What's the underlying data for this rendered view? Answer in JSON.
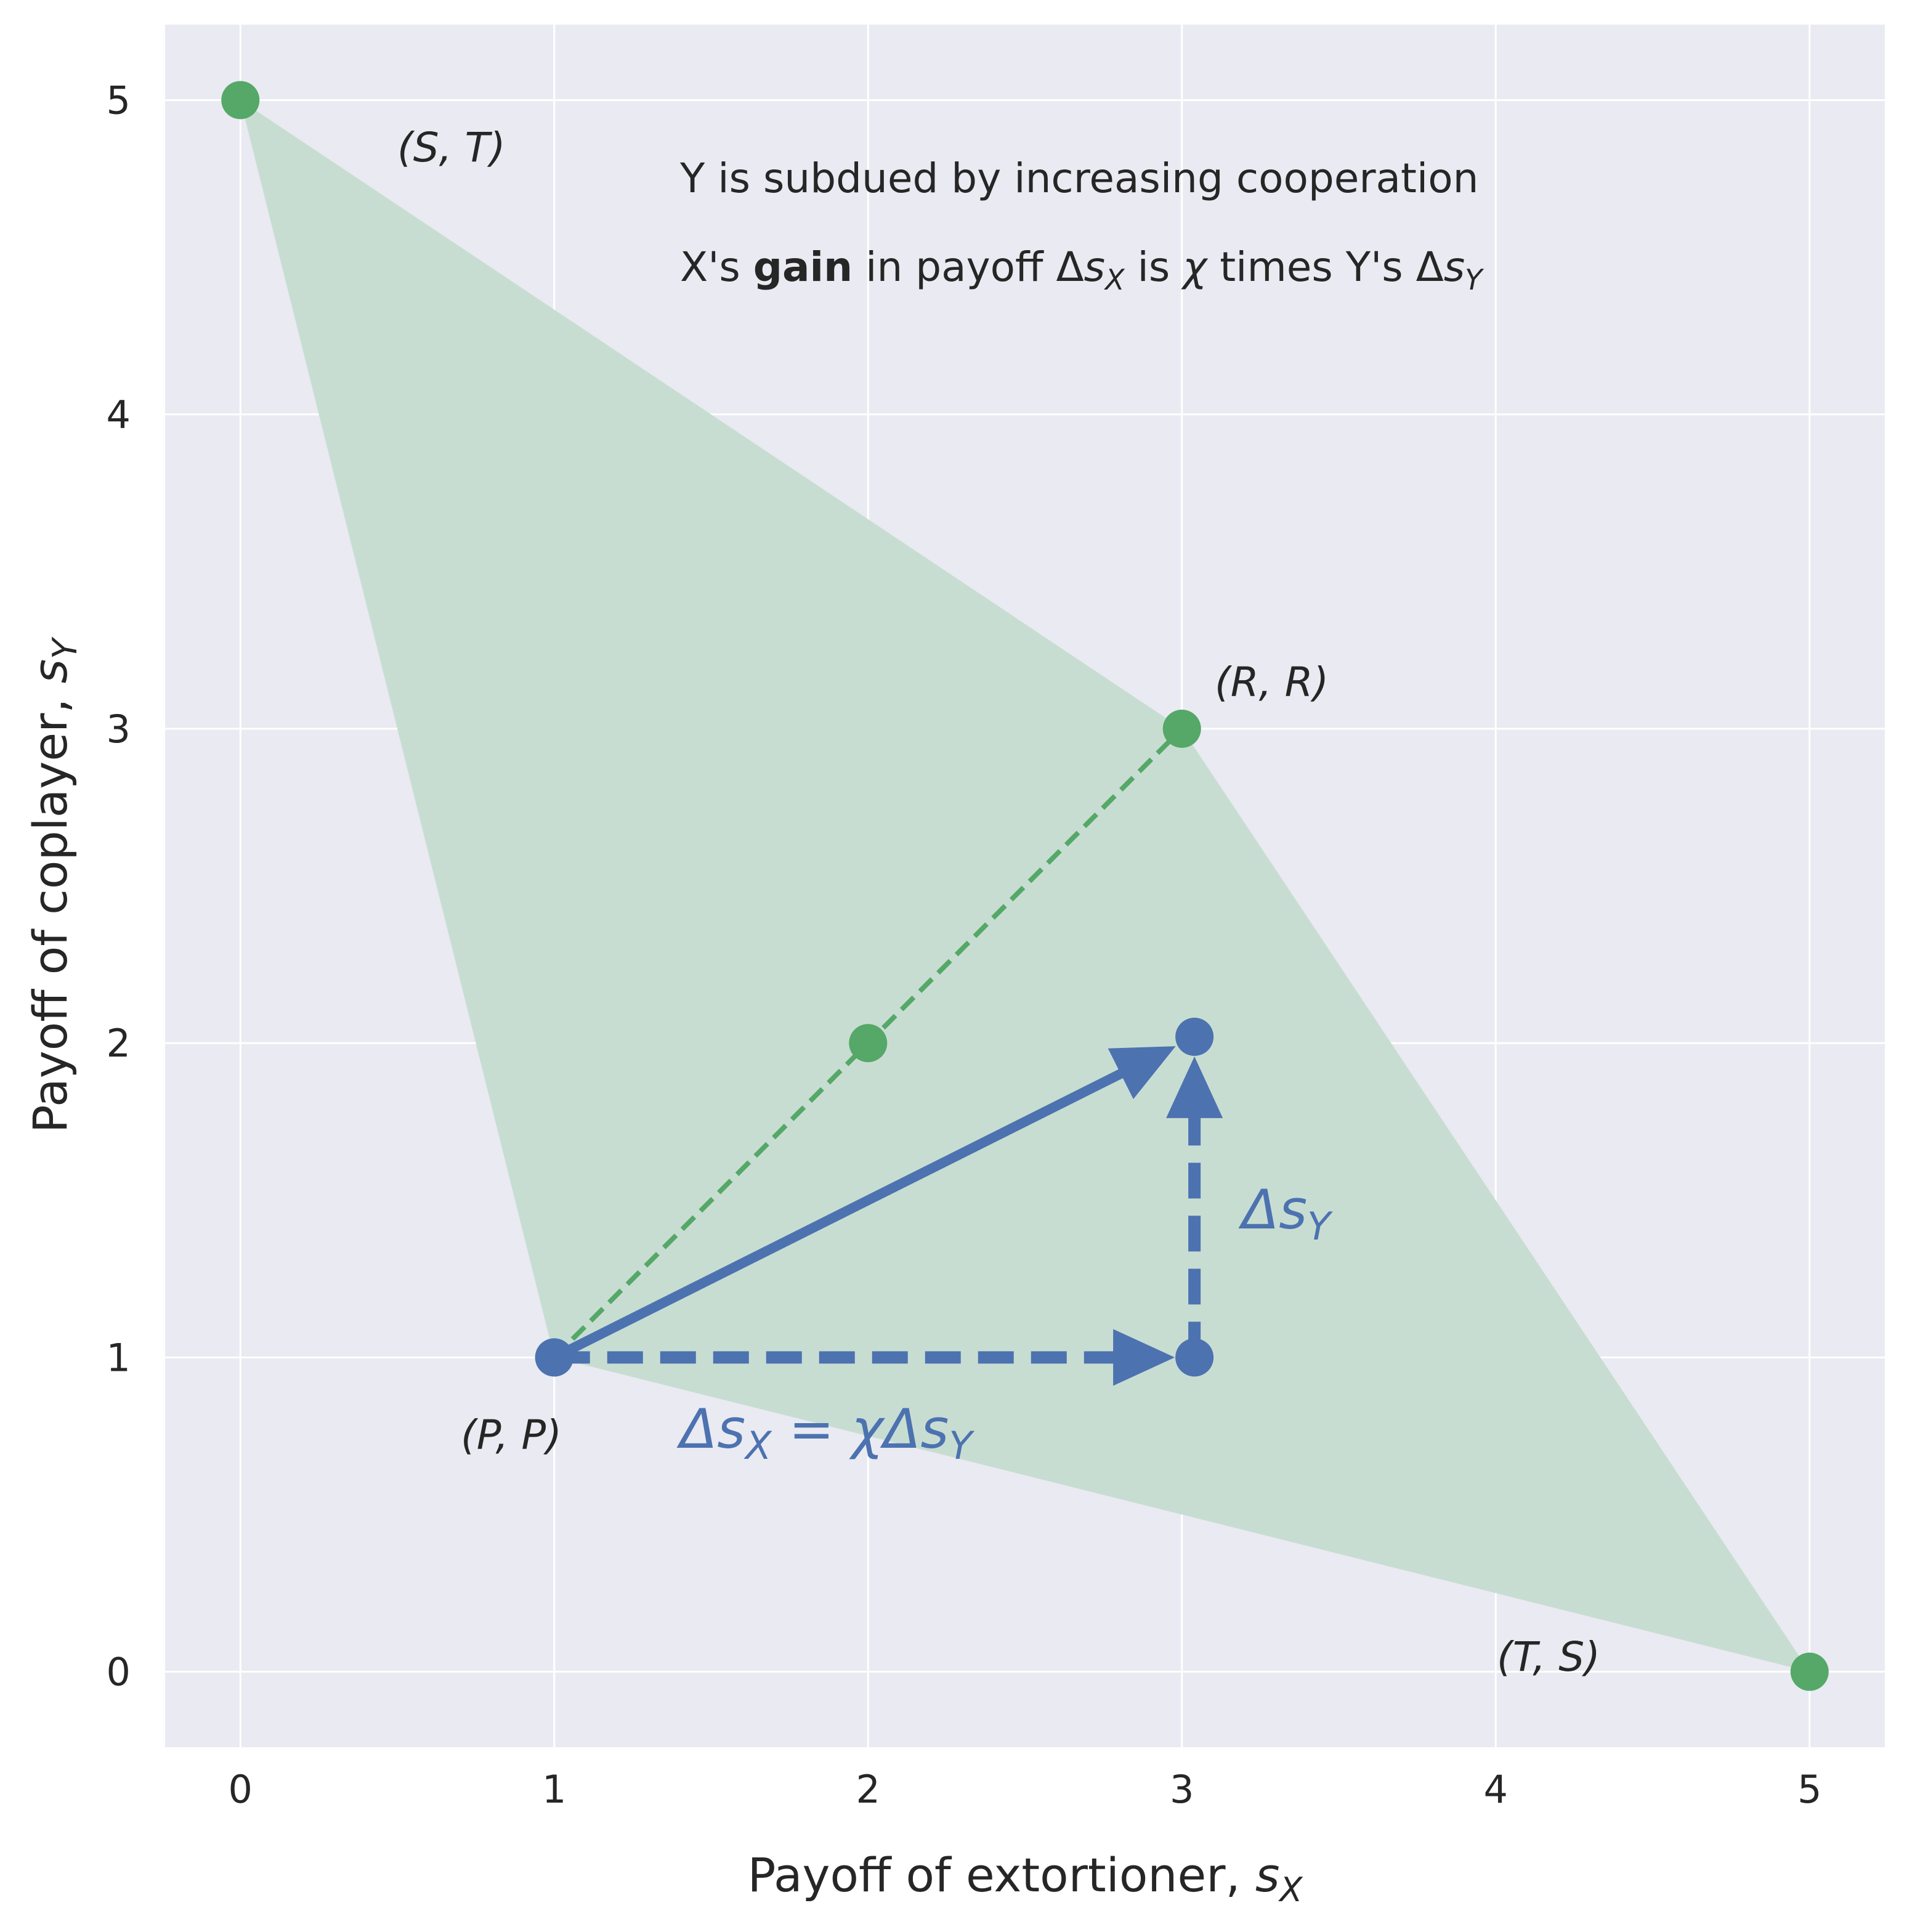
{
  "chart_data": {
    "type": "scatter",
    "xlabel_text": "Payoff of extortioner, ",
    "xlabel_sym": "s",
    "xlabel_sub": "X",
    "ylabel_text": "Payoff of coplayer, ",
    "ylabel_sym": "s",
    "ylabel_sub": "Y",
    "xlim": [
      -0.24,
      5.24
    ],
    "ylim": [
      -0.24,
      5.24
    ],
    "xticks": [
      "0",
      "1",
      "2",
      "3",
      "4",
      "5"
    ],
    "yticks": [
      "0",
      "1",
      "2",
      "3",
      "4",
      "5"
    ],
    "grid": true,
    "region": {
      "vertices": [
        [
          0,
          5
        ],
        [
          3,
          3
        ],
        [
          5,
          0
        ],
        [
          1,
          1
        ]
      ],
      "color": "#c8ddd2"
    },
    "points": [
      {
        "label": "(S, T)",
        "x": 0,
        "y": 5
      },
      {
        "label": "(R, R)",
        "x": 3,
        "y": 3
      },
      {
        "label": "(P, P)",
        "x": 1,
        "y": 1
      },
      {
        "label": "(T, S)",
        "x": 5,
        "y": 0
      }
    ],
    "diagonal": {
      "from": [
        1,
        1
      ],
      "to": [
        3,
        3
      ],
      "midpoint": [
        2,
        2
      ],
      "color": "#55a868"
    },
    "vectors": {
      "color": "#4c72b0",
      "start": [
        1,
        1
      ],
      "corner": [
        3.04,
        1
      ],
      "end": [
        3.04,
        2.02
      ]
    },
    "label_dx": "Δs",
    "label_dx_sub": "X",
    "label_eq": " = χΔs",
    "label_eq_sub": "Y",
    "label_dy": "Δs",
    "label_dy_sub": "Y",
    "annotation_line1": "Y is subdued by increasing cooperation",
    "annotation_line2_a": "X's ",
    "annotation_line2_bold": "gain",
    "annotation_line2_b": " in payoff Δ",
    "annotation_line2_sym1": "s",
    "annotation_line2_sub1": "X",
    "annotation_line2_c": " is ",
    "annotation_line2_chi": "χ",
    "annotation_line2_d": " times Y's Δ",
    "annotation_line2_sym2": "s",
    "annotation_line2_sub2": "Y",
    "colors": {
      "background": "#eaeaf2",
      "grid": "#ffffff",
      "green": "#55a868",
      "blue": "#4c72b0"
    }
  }
}
